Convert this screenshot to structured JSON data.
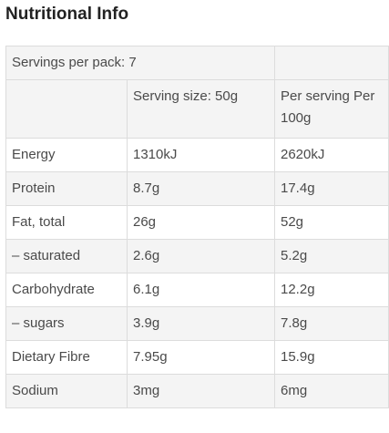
{
  "title": "Nutritional Info",
  "servings_label": "Servings per pack: 7",
  "headers": {
    "per_serving": "Serving size: 50g",
    "per_100g": "Per serving Per 100g"
  },
  "rows": [
    {
      "name": "Energy",
      "serving": "1310kJ",
      "per100": "2620kJ"
    },
    {
      "name": "Protein",
      "serving": "8.7g",
      "per100": "17.4g"
    },
    {
      "name": "Fat, total",
      "serving": "26g",
      "per100": "52g"
    },
    {
      "name": "– saturated",
      "serving": "2.6g",
      "per100": "5.2g"
    },
    {
      "name": "Carbohydrate",
      "serving": "6.1g",
      "per100": "12.2g"
    },
    {
      "name": "– sugars",
      "serving": "3.9g",
      "per100": "7.8g"
    },
    {
      "name": "Dietary Fibre",
      "serving": "7.95g",
      "per100": "15.9g"
    },
    {
      "name": "Sodium",
      "serving": "3mg",
      "per100": "6mg"
    }
  ]
}
